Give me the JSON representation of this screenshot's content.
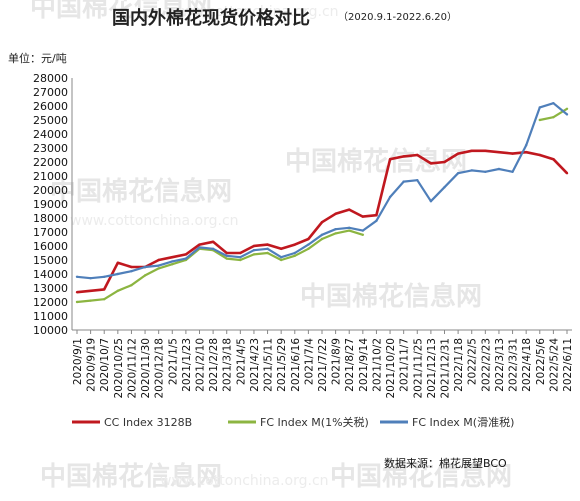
{
  "title": "国内外棉花现货价格对比",
  "subtitle": "（2020.9.1-2022.6.20）",
  "unit_label": "单位：元/吨",
  "source": "数据来源：棉花展望BCO",
  "watermark": {
    "brand": "中国棉花信息网",
    "url": "www.cottonchina.org.cn"
  },
  "chart_data": {
    "type": "line",
    "title": "国内外棉花现货价格对比",
    "subtitle": "（2020.9.1-2022.6.20）",
    "ylabel": "单位：元/吨",
    "ylim": [
      10000,
      28000
    ],
    "yticks": [
      10000,
      11000,
      12000,
      13000,
      14000,
      15000,
      16000,
      17000,
      18000,
      19000,
      20000,
      21000,
      22000,
      23000,
      24000,
      25000,
      26000,
      27000,
      28000
    ],
    "grid": false,
    "legend_position": "bottom",
    "categories": [
      "2020/9/1",
      "2020/9/19",
      "2020/10/7",
      "2020/10/25",
      "2020/11/12",
      "2020/11/30",
      "2020/12/18",
      "2021/1/5",
      "2021/1/23",
      "2021/2/10",
      "2021/2/28",
      "2021/3/18",
      "2021/4/5",
      "2021/4/23",
      "2021/5/11",
      "2021/5/29",
      "2021/6/16",
      "2021/7/4",
      "2021/7/22",
      "2021/8/9",
      "2021/8/27",
      "2021/9/14",
      "2021/10/2",
      "2021/10/20",
      "2021/11/7",
      "2021/11/25",
      "2021/12/13",
      "2021/12/31",
      "2022/1/18",
      "2022/2/5",
      "2022/2/23",
      "2022/3/13",
      "2022/3/31",
      "2022/4/18",
      "2022/5/6",
      "2022/5/24",
      "2022/6/11"
    ],
    "series": [
      {
        "name": "CC Index 3128B",
        "color": "#c0181f",
        "values": [
          12700,
          12800,
          12900,
          14800,
          14500,
          14500,
          15000,
          15200,
          15400,
          16100,
          16300,
          15500,
          15500,
          16000,
          16100,
          15800,
          16100,
          16500,
          17700,
          18300,
          18600,
          18100,
          18200,
          22200,
          22400,
          22500,
          21900,
          22000,
          22600,
          22800,
          22800,
          22700,
          22600,
          22700,
          22500,
          22200,
          21200
        ]
      },
      {
        "name": "FC Index M(1%关税)",
        "color": "#8cb541",
        "values": [
          12000,
          12100,
          12200,
          12800,
          13200,
          13900,
          14400,
          14700,
          15000,
          15800,
          15700,
          15100,
          15000,
          15400,
          15500,
          15000,
          15300,
          15800,
          16500,
          16900,
          17100,
          16800,
          null,
          null,
          null,
          null,
          null,
          null,
          null,
          null,
          null,
          null,
          null,
          null,
          25000,
          25200,
          25800
        ]
      },
      {
        "name": "FC Index M(滑准税)",
        "color": "#4f7fba",
        "values": [
          13800,
          13700,
          13800,
          14000,
          14200,
          14500,
          14600,
          14900,
          15100,
          15900,
          15800,
          15300,
          15200,
          15700,
          15800,
          15200,
          15500,
          16100,
          16800,
          17200,
          17300,
          17100,
          17800,
          19500,
          20600,
          20700,
          19200,
          20200,
          21200,
          21400,
          21300,
          21500,
          21300,
          23200,
          25900,
          26200,
          25400
        ]
      }
    ]
  }
}
